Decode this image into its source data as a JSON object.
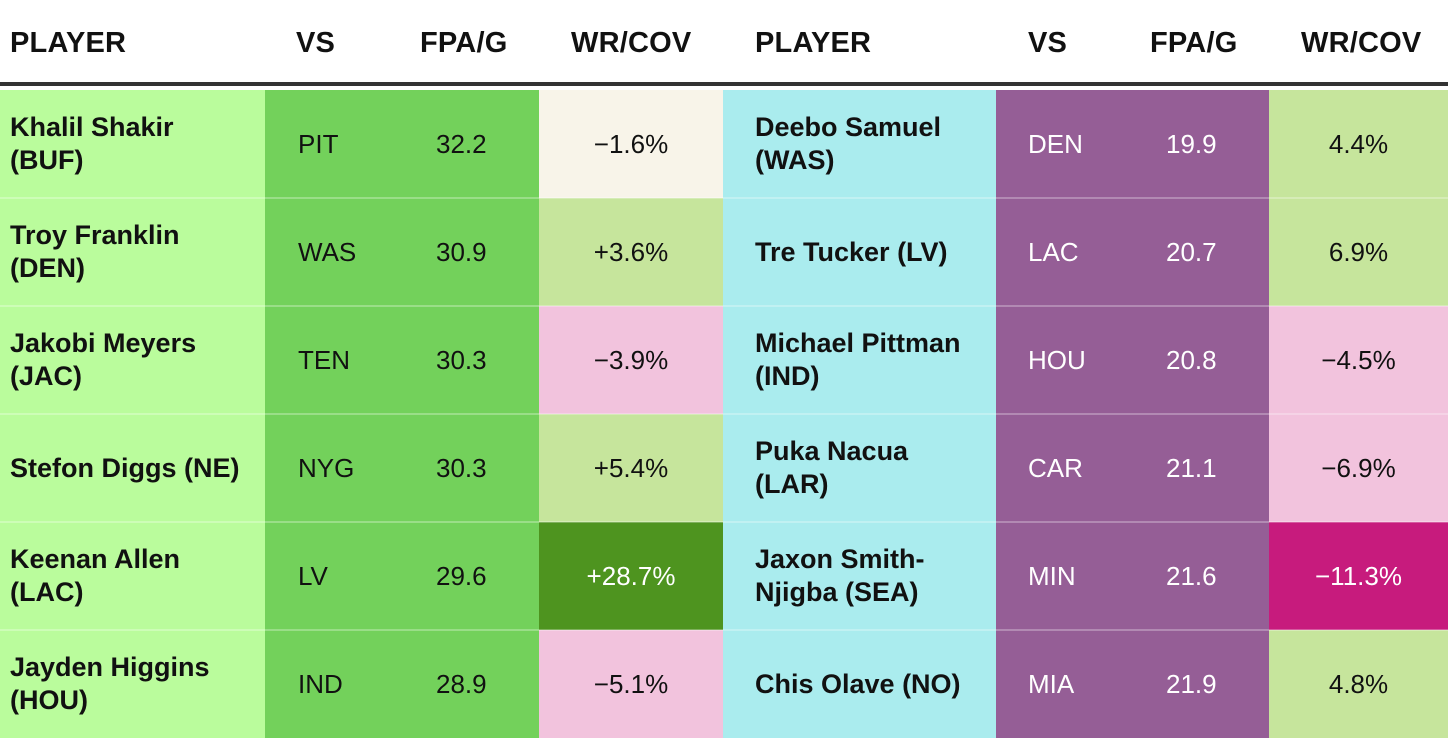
{
  "headers": {
    "left": {
      "player": "PLAYER",
      "vs": "VS",
      "fpa": "FPA/G",
      "wrcov": "WR/COV"
    },
    "right": {
      "player": "PLAYER",
      "vs": "VS",
      "fpa": "FPA/G",
      "wrcov": "WR/COV"
    }
  },
  "colors": {
    "left_player_bg": "#bafc9c",
    "left_opp_bg": "#73d15b",
    "right_player_bg": "#aaecee",
    "right_opp_bg": "#955e96",
    "wrcov_light_cream": "#f8f4e9",
    "wrcov_light_green": "#c6e59c",
    "wrcov_pink": "#f2c3dd",
    "wrcov_dark_green": "#4e941f",
    "wrcov_magenta": "#c71b7d"
  },
  "left_rows": [
    {
      "player": "Khalil Shakir (BUF)",
      "vs": "PIT",
      "fpa": "32.2",
      "wrcov": "−1.6%",
      "wrcov_color": "#f8f4e9",
      "wrcov_text": "#111111"
    },
    {
      "player": "Troy Franklin (DEN)",
      "vs": "WAS",
      "fpa": "30.9",
      "wrcov": "+3.6%",
      "wrcov_color": "#c6e59c",
      "wrcov_text": "#111111"
    },
    {
      "player": "Jakobi Meyers (JAC)",
      "vs": "TEN",
      "fpa": "30.3",
      "wrcov": "−3.9%",
      "wrcov_color": "#f2c3dd",
      "wrcov_text": "#111111"
    },
    {
      "player": "Stefon Diggs (NE)",
      "vs": "NYG",
      "fpa": "30.3",
      "wrcov": "+5.4%",
      "wrcov_color": "#c6e59c",
      "wrcov_text": "#111111"
    },
    {
      "player": "Keenan Allen (LAC)",
      "vs": "LV",
      "fpa": "29.6",
      "wrcov": "+28.7%",
      "wrcov_color": "#4e941f",
      "wrcov_text": "#ffffff"
    },
    {
      "player": "Jayden Higgins (HOU)",
      "vs": "IND",
      "fpa": "28.9",
      "wrcov": "−5.1%",
      "wrcov_color": "#f2c3dd",
      "wrcov_text": "#111111"
    }
  ],
  "right_rows": [
    {
      "player": "Deebo Samuel (WAS)",
      "vs": "DEN",
      "fpa": "19.9",
      "wrcov": "4.4%",
      "wrcov_color": "#c6e59c",
      "wrcov_text": "#111111"
    },
    {
      "player": "Tre Tucker (LV)",
      "vs": "LAC",
      "fpa": "20.7",
      "wrcov": "6.9%",
      "wrcov_color": "#c6e59c",
      "wrcov_text": "#111111"
    },
    {
      "player": "Michael Pittman (IND)",
      "vs": "HOU",
      "fpa": "20.8",
      "wrcov": "−4.5%",
      "wrcov_color": "#f2c3dd",
      "wrcov_text": "#111111"
    },
    {
      "player": "Puka Nacua (LAR)",
      "vs": "CAR",
      "fpa": "21.1",
      "wrcov": "−6.9%",
      "wrcov_color": "#f2c3dd",
      "wrcov_text": "#111111"
    },
    {
      "player": "Jaxon Smith-Njigba (SEA)",
      "vs": "MIN",
      "fpa": "21.6",
      "wrcov": "−11.3%",
      "wrcov_color": "#c71b7d",
      "wrcov_text": "#ffffff"
    },
    {
      "player": "Chis Olave (NO)",
      "vs": "MIA",
      "fpa": "21.9",
      "wrcov": "4.8%",
      "wrcov_color": "#c6e59c",
      "wrcov_text": "#111111"
    }
  ]
}
